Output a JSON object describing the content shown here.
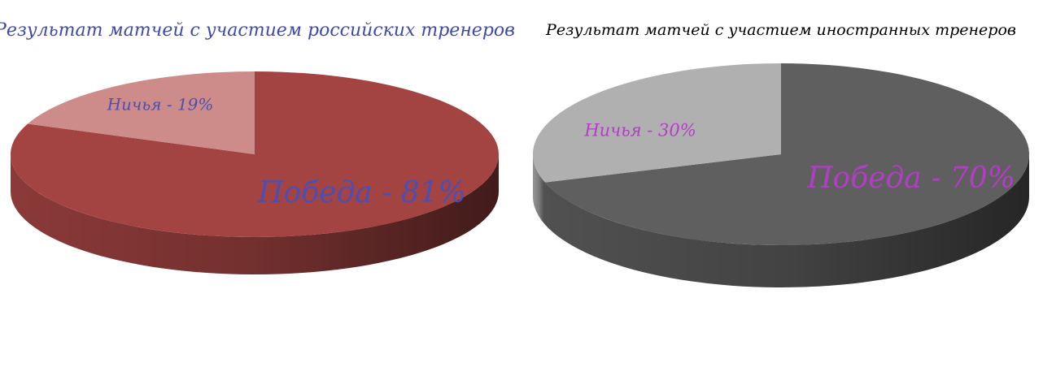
{
  "chart_data": [
    {
      "type": "pie",
      "title": "Результат матчей с участием российских тренеров",
      "values": [
        81,
        19
      ],
      "value_labels": [
        "Победа - 81%",
        "Ничья - 19%"
      ],
      "colors": [
        "#a34442",
        "#cd8c89"
      ],
      "label_color": "#4b4fb5",
      "title_color": "#3f4aa8"
    },
    {
      "type": "pie",
      "title": "Результат матчей с участием иностранных тренеров",
      "values": [
        70,
        30
      ],
      "value_labels": [
        "Победа - 70%",
        "Ничья - 30%"
      ],
      "colors": [
        "#5f5f5f",
        "#b0b0b0"
      ],
      "label_color": "#b43cc8",
      "title_color": "#000000"
    }
  ]
}
